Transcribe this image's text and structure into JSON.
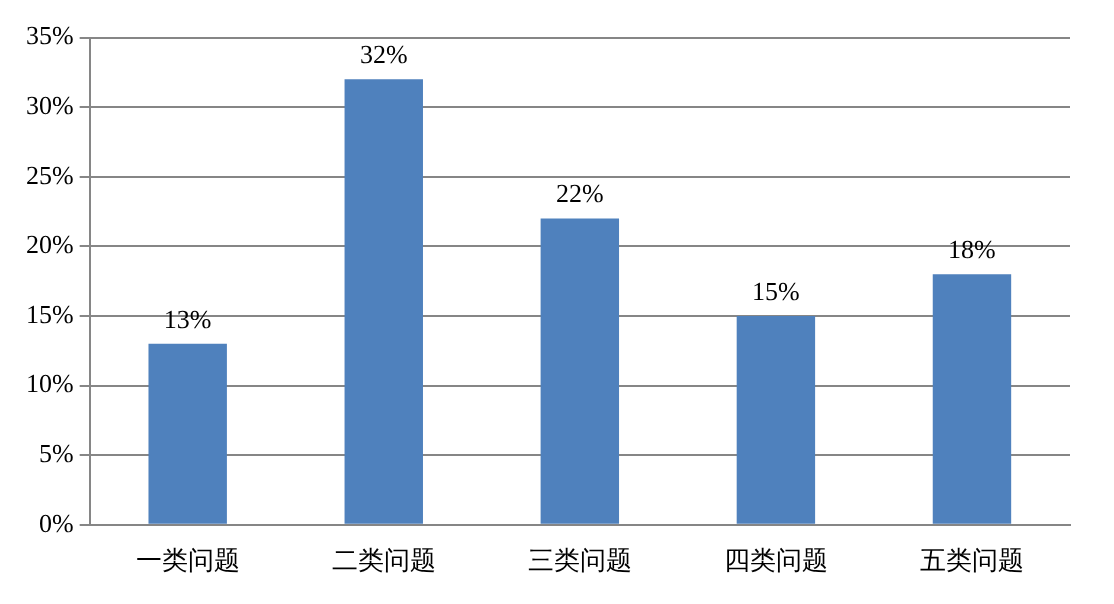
{
  "chart_data": {
    "type": "bar",
    "categories": [
      "一类问题",
      "二类问题",
      "三类问题",
      "四类问题",
      "五类问题"
    ],
    "values": [
      13,
      32,
      22,
      15,
      18
    ],
    "value_labels": [
      "13%",
      "32%",
      "22%",
      "15%",
      "18%"
    ],
    "color": "#4f81bd",
    "ylim": [
      0,
      35
    ],
    "yticks": [
      {
        "value": 0,
        "label": "0%"
      },
      {
        "value": 5,
        "label": "5%"
      },
      {
        "value": 10,
        "label": "10%"
      },
      {
        "value": 15,
        "label": "15%"
      },
      {
        "value": 20,
        "label": "20%"
      },
      {
        "value": 25,
        "label": "25%"
      },
      {
        "value": 30,
        "label": "30%"
      },
      {
        "value": 35,
        "label": "35%"
      }
    ],
    "grid": "y",
    "legend": false
  }
}
